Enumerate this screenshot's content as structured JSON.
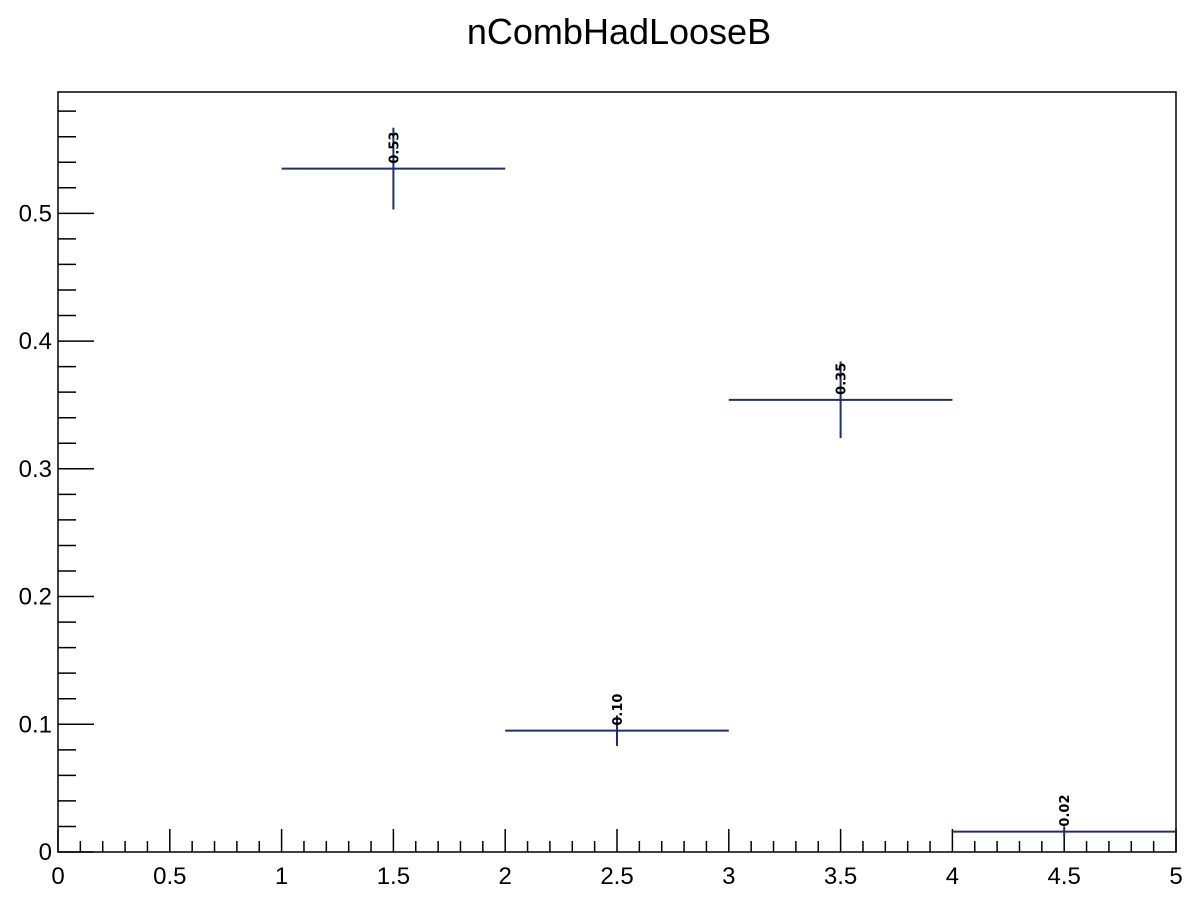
{
  "chart_data": {
    "type": "scatter",
    "title": "nCombHadLooseB",
    "xlabel": "",
    "ylabel": "",
    "xlim": [
      0,
      5
    ],
    "ylim": [
      0,
      0.595
    ],
    "grid": false,
    "color": "#1f2f6b",
    "x_ticks": [
      "0",
      "0.5",
      "1",
      "1.5",
      "2",
      "2.5",
      "3",
      "3.5",
      "4",
      "4.5",
      "5"
    ],
    "y_ticks": [
      "0",
      "0.1",
      "0.2",
      "0.3",
      "0.4",
      "0.5"
    ],
    "series": [
      {
        "points": [
          {
            "x": 1.5,
            "xlow": 1,
            "xhigh": 2,
            "y": 0.535,
            "ylow": 0.503,
            "yhigh": 0.567,
            "label": "0.53"
          },
          {
            "x": 2.5,
            "xlow": 2,
            "xhigh": 3,
            "y": 0.095,
            "ylow": 0.083,
            "yhigh": 0.107,
            "label": "0.10"
          },
          {
            "x": 3.5,
            "xlow": 3,
            "xhigh": 4,
            "y": 0.354,
            "ylow": 0.324,
            "yhigh": 0.384,
            "label": "0.35"
          },
          {
            "x": 4.5,
            "xlow": 4,
            "xhigh": 5,
            "y": 0.016,
            "ylow": 0.012,
            "yhigh": 0.02,
            "label": "0.02"
          }
        ]
      }
    ]
  }
}
